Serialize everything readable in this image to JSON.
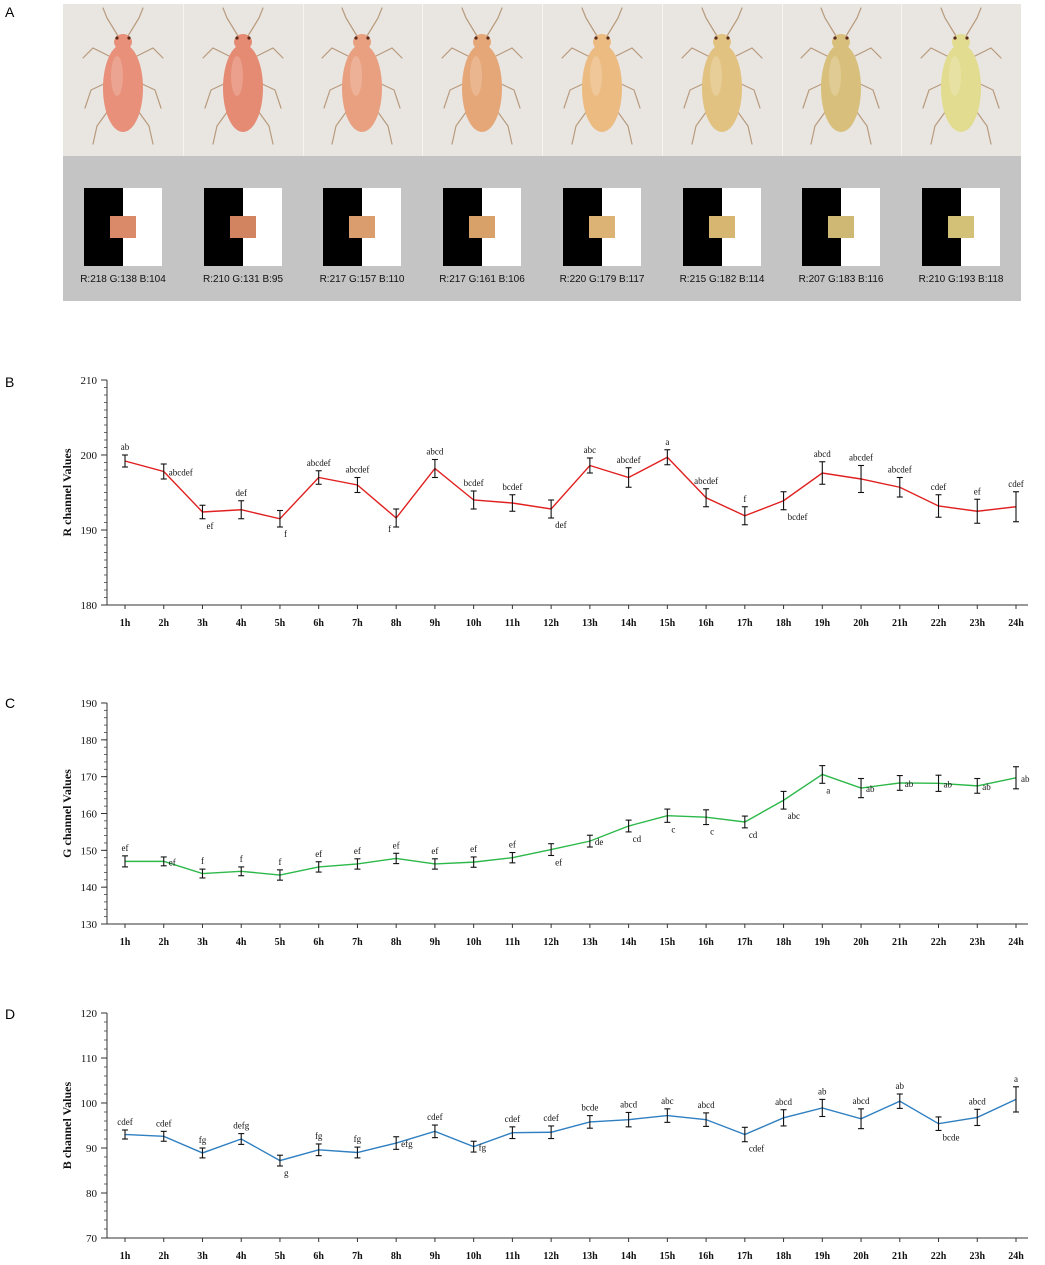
{
  "panels": {
    "a": "A",
    "b": "B",
    "c": "C",
    "d": "D"
  },
  "swatches": [
    {
      "label": "R:218  G:138  B:104",
      "color": "#da8a68"
    },
    {
      "label": "R:210  G:131  B:95",
      "color": "#d2835f"
    },
    {
      "label": "R:217  G:157  B:110",
      "color": "#d99d6e"
    },
    {
      "label": "R:217  G:161  B:106",
      "color": "#d9a16a"
    },
    {
      "label": "R:220  G:179  B:117",
      "color": "#dcb375"
    },
    {
      "label": "R:215  G:182  B:114",
      "color": "#d7b672"
    },
    {
      "label": "R:207  G:183  B:116",
      "color": "#cfb774"
    },
    {
      "label": "R:210  G:193  B:118",
      "color": "#d2c176"
    }
  ],
  "aphid_body_colors": [
    "#e8907a",
    "#e68b73",
    "#e8a080",
    "#e6a778",
    "#ecbb82",
    "#e2c280",
    "#d8c07c",
    "#e2dc90"
  ],
  "chart_data": [
    {
      "type": "line",
      "panel": "B",
      "color": "#e02020",
      "ylabel": "R channel Values",
      "ylim": [
        180,
        210
      ],
      "yticks": [
        180,
        190,
        200,
        210
      ],
      "minor_step": 1,
      "categories": [
        "1h",
        "2h",
        "3h",
        "4h",
        "5h",
        "6h",
        "7h",
        "8h",
        "9h",
        "10h",
        "11h",
        "12h",
        "13h",
        "14h",
        "15h",
        "16h",
        "17h",
        "18h",
        "19h",
        "20h",
        "21h",
        "22h",
        "23h",
        "24h"
      ],
      "values": [
        199.2,
        197.8,
        192.4,
        192.7,
        191.5,
        197.0,
        196.0,
        191.6,
        198.2,
        194.0,
        193.6,
        192.8,
        198.6,
        197.0,
        199.7,
        194.3,
        191.9,
        193.9,
        197.6,
        196.8,
        195.7,
        193.2,
        192.5,
        193.1
      ],
      "errors": [
        0.8,
        1.0,
        0.9,
        1.2,
        1.1,
        0.9,
        1.0,
        1.2,
        1.2,
        1.2,
        1.1,
        1.2,
        1.0,
        1.3,
        1.0,
        1.2,
        1.2,
        1.2,
        1.5,
        1.8,
        1.3,
        1.5,
        1.6,
        2.0
      ],
      "letters": [
        "ab",
        "abcdef",
        "ef",
        "def",
        "f",
        "abcdef",
        "abcdef",
        "f",
        "abcd",
        "bcdef",
        "bcdef",
        "def",
        "abc",
        "abcdef",
        "a",
        "abcdef",
        "f",
        "bcdef",
        "abcd",
        "abcdef",
        "abcdef",
        "cdef",
        "ef",
        "cdef"
      ],
      "letter_pos": [
        "above",
        "right",
        "below",
        "above",
        "below",
        "above",
        "above",
        "left",
        "above",
        "above",
        "above",
        "below",
        "above",
        "above",
        "above",
        "above",
        "above",
        "below",
        "above",
        "above",
        "above",
        "above",
        "above",
        "above"
      ]
    },
    {
      "type": "line",
      "panel": "C",
      "color": "#2db84a",
      "ylabel": "G channel Values",
      "ylim": [
        130,
        190
      ],
      "yticks": [
        130,
        140,
        150,
        160,
        170,
        180,
        190
      ],
      "minor_step": 2,
      "categories": [
        "1h",
        "2h",
        "3h",
        "4h",
        "5h",
        "6h",
        "7h",
        "8h",
        "9h",
        "10h",
        "11h",
        "12h",
        "13h",
        "14h",
        "15h",
        "16h",
        "17h",
        "18h",
        "19h",
        "20h",
        "21h",
        "22h",
        "23h",
        "24h"
      ],
      "values": [
        147.0,
        147.0,
        143.7,
        144.3,
        143.3,
        145.5,
        146.3,
        147.8,
        146.3,
        146.8,
        148.0,
        150.2,
        152.5,
        156.6,
        159.4,
        159.0,
        157.7,
        163.6,
        170.6,
        166.9,
        168.3,
        168.2,
        167.5,
        169.7
      ],
      "errors": [
        1.5,
        1.2,
        1.2,
        1.2,
        1.4,
        1.4,
        1.4,
        1.4,
        1.4,
        1.4,
        1.4,
        1.6,
        1.6,
        1.6,
        1.8,
        2.0,
        1.6,
        2.4,
        2.4,
        2.6,
        2.0,
        2.2,
        2.0,
        3.0
      ],
      "letters": [
        "ef",
        "ef",
        "f",
        "f",
        "f",
        "ef",
        "ef",
        "ef",
        "ef",
        "ef",
        "ef",
        "ef",
        "de",
        "cd",
        "c",
        "c",
        "cd",
        "abc",
        "a",
        "ab",
        "ab",
        "ab",
        "ab",
        "ab"
      ],
      "letter_pos": [
        "above",
        "right",
        "above",
        "above",
        "above",
        "above",
        "above",
        "above",
        "above",
        "above",
        "above",
        "below",
        "right",
        "below",
        "below",
        "below",
        "below",
        "below",
        "below",
        "right",
        "right",
        "right",
        "right",
        "right"
      ]
    },
    {
      "type": "line",
      "panel": "D",
      "color": "#2f7fc1",
      "ylabel": "B channel Values",
      "ylim": [
        70,
        120
      ],
      "yticks": [
        70,
        80,
        90,
        100,
        110,
        120
      ],
      "minor_step": 2,
      "categories": [
        "1h",
        "2h",
        "3h",
        "4h",
        "5h",
        "6h",
        "7h",
        "8h",
        "9h",
        "10h",
        "11h",
        "12h",
        "13h",
        "14h",
        "15h",
        "16h",
        "17h",
        "18h",
        "19h",
        "20h",
        "21h",
        "22h",
        "23h",
        "24h"
      ],
      "values": [
        93.0,
        92.6,
        88.9,
        92.0,
        87.2,
        89.6,
        89.0,
        91.1,
        93.7,
        90.3,
        93.4,
        93.5,
        95.8,
        96.3,
        97.2,
        96.3,
        93.0,
        96.7,
        98.9,
        96.5,
        100.4,
        95.4,
        96.8,
        100.8
      ],
      "errors": [
        1.0,
        1.1,
        1.1,
        1.2,
        1.2,
        1.3,
        1.2,
        1.4,
        1.4,
        1.2,
        1.3,
        1.4,
        1.4,
        1.6,
        1.5,
        1.5,
        1.6,
        1.8,
        1.9,
        2.2,
        1.6,
        1.5,
        1.8,
        2.8
      ],
      "letters": [
        "cdef",
        "cdef",
        "fg",
        "defg",
        "g",
        "fg",
        "fg",
        "efg",
        "cdef",
        "fg",
        "cdef",
        "cdef",
        "bcde",
        "abcd",
        "abc",
        "abcd",
        "cdef",
        "abcd",
        "ab",
        "abcd",
        "ab",
        "bcde",
        "abcd",
        "a"
      ],
      "letter_pos": [
        "above",
        "above",
        "above",
        "above",
        "below",
        "above",
        "above",
        "right",
        "above",
        "right",
        "above",
        "above",
        "above",
        "above",
        "above",
        "above",
        "below",
        "above",
        "above",
        "above",
        "above",
        "below",
        "above",
        "above"
      ]
    }
  ]
}
